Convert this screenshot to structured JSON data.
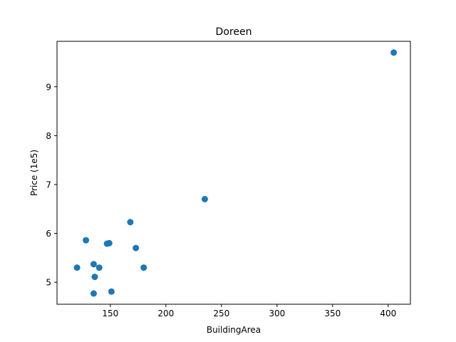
{
  "chart_data": {
    "type": "scatter",
    "title": "Doreen",
    "xlabel": "BuildingArea",
    "ylabel": "Price (1e5)",
    "xlim": [
      102,
      420
    ],
    "ylim": [
      4.55,
      9.93
    ],
    "xticks": [
      150,
      200,
      250,
      300,
      350,
      400
    ],
    "yticks": [
      5,
      6,
      7,
      8,
      9
    ],
    "grid": false,
    "marker_color": "#1f77b4",
    "points": [
      {
        "x": 120,
        "y": 5.3
      },
      {
        "x": 128,
        "y": 5.86
      },
      {
        "x": 135,
        "y": 5.37
      },
      {
        "x": 135,
        "y": 4.77
      },
      {
        "x": 136,
        "y": 5.11
      },
      {
        "x": 140,
        "y": 5.3
      },
      {
        "x": 147,
        "y": 5.79
      },
      {
        "x": 149,
        "y": 5.8
      },
      {
        "x": 151,
        "y": 4.81
      },
      {
        "x": 168,
        "y": 6.23
      },
      {
        "x": 173,
        "y": 5.7
      },
      {
        "x": 180,
        "y": 5.3
      },
      {
        "x": 235,
        "y": 6.7
      },
      {
        "x": 405,
        "y": 9.7
      }
    ]
  }
}
